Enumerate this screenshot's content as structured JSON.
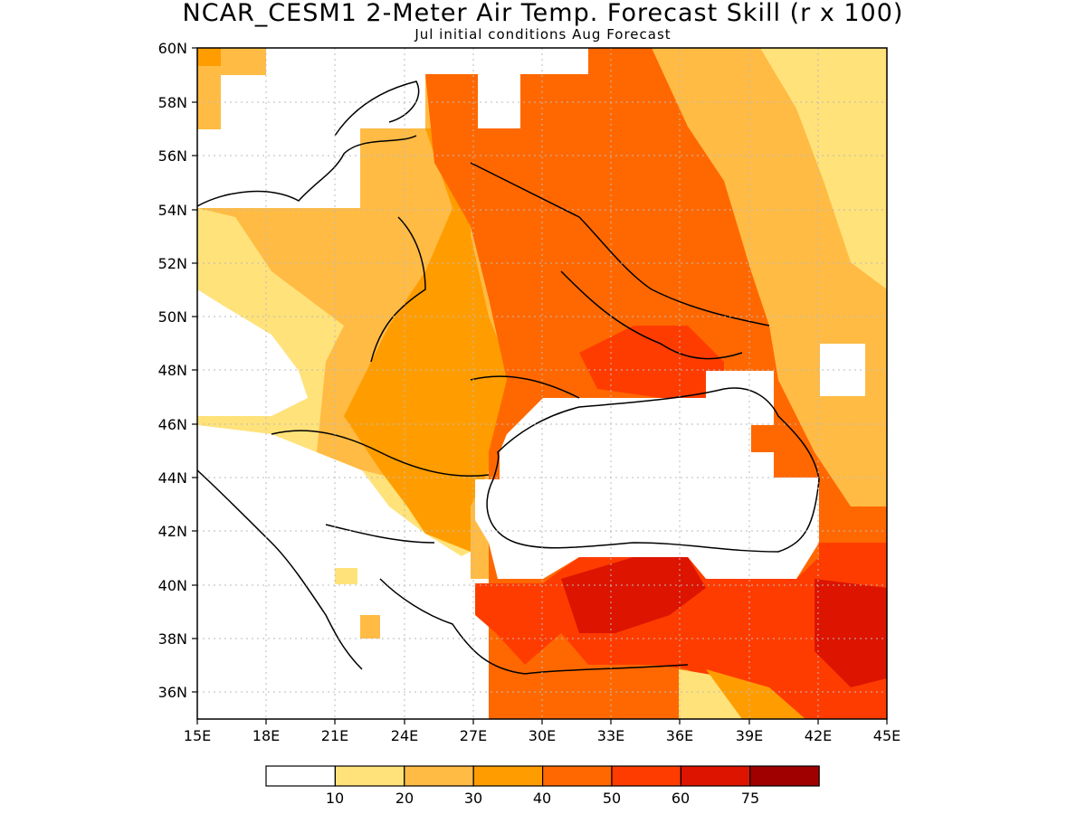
{
  "title": "NCAR_CESM1 2-Meter Air Temp. Forecast Skill (r x 100)",
  "subtitle": "Jul initial conditions  Aug Forecast",
  "map": {
    "lon_range": [
      15,
      45
    ],
    "lat_range": [
      35,
      60
    ],
    "lat_ticks": [
      "60N",
      "58N",
      "56N",
      "54N",
      "52N",
      "50N",
      "48N",
      "46N",
      "44N",
      "42N",
      "40N",
      "38N",
      "36N"
    ],
    "lon_ticks": [
      "15E",
      "18E",
      "21E",
      "24E",
      "27E",
      "30E",
      "33E",
      "36E",
      "39E",
      "42E",
      "45E"
    ],
    "grid": true,
    "region": "Eastern Europe, Black Sea, Turkey"
  },
  "legend": {
    "labels": [
      "10",
      "20",
      "30",
      "40",
      "50",
      "60",
      "75"
    ],
    "colors": [
      "#ffffff",
      "#ffe27a",
      "#ffbb44",
      "#ff9d00",
      "#ff6800",
      "#ff3c00",
      "#dc1400",
      "#a00000"
    ]
  }
}
